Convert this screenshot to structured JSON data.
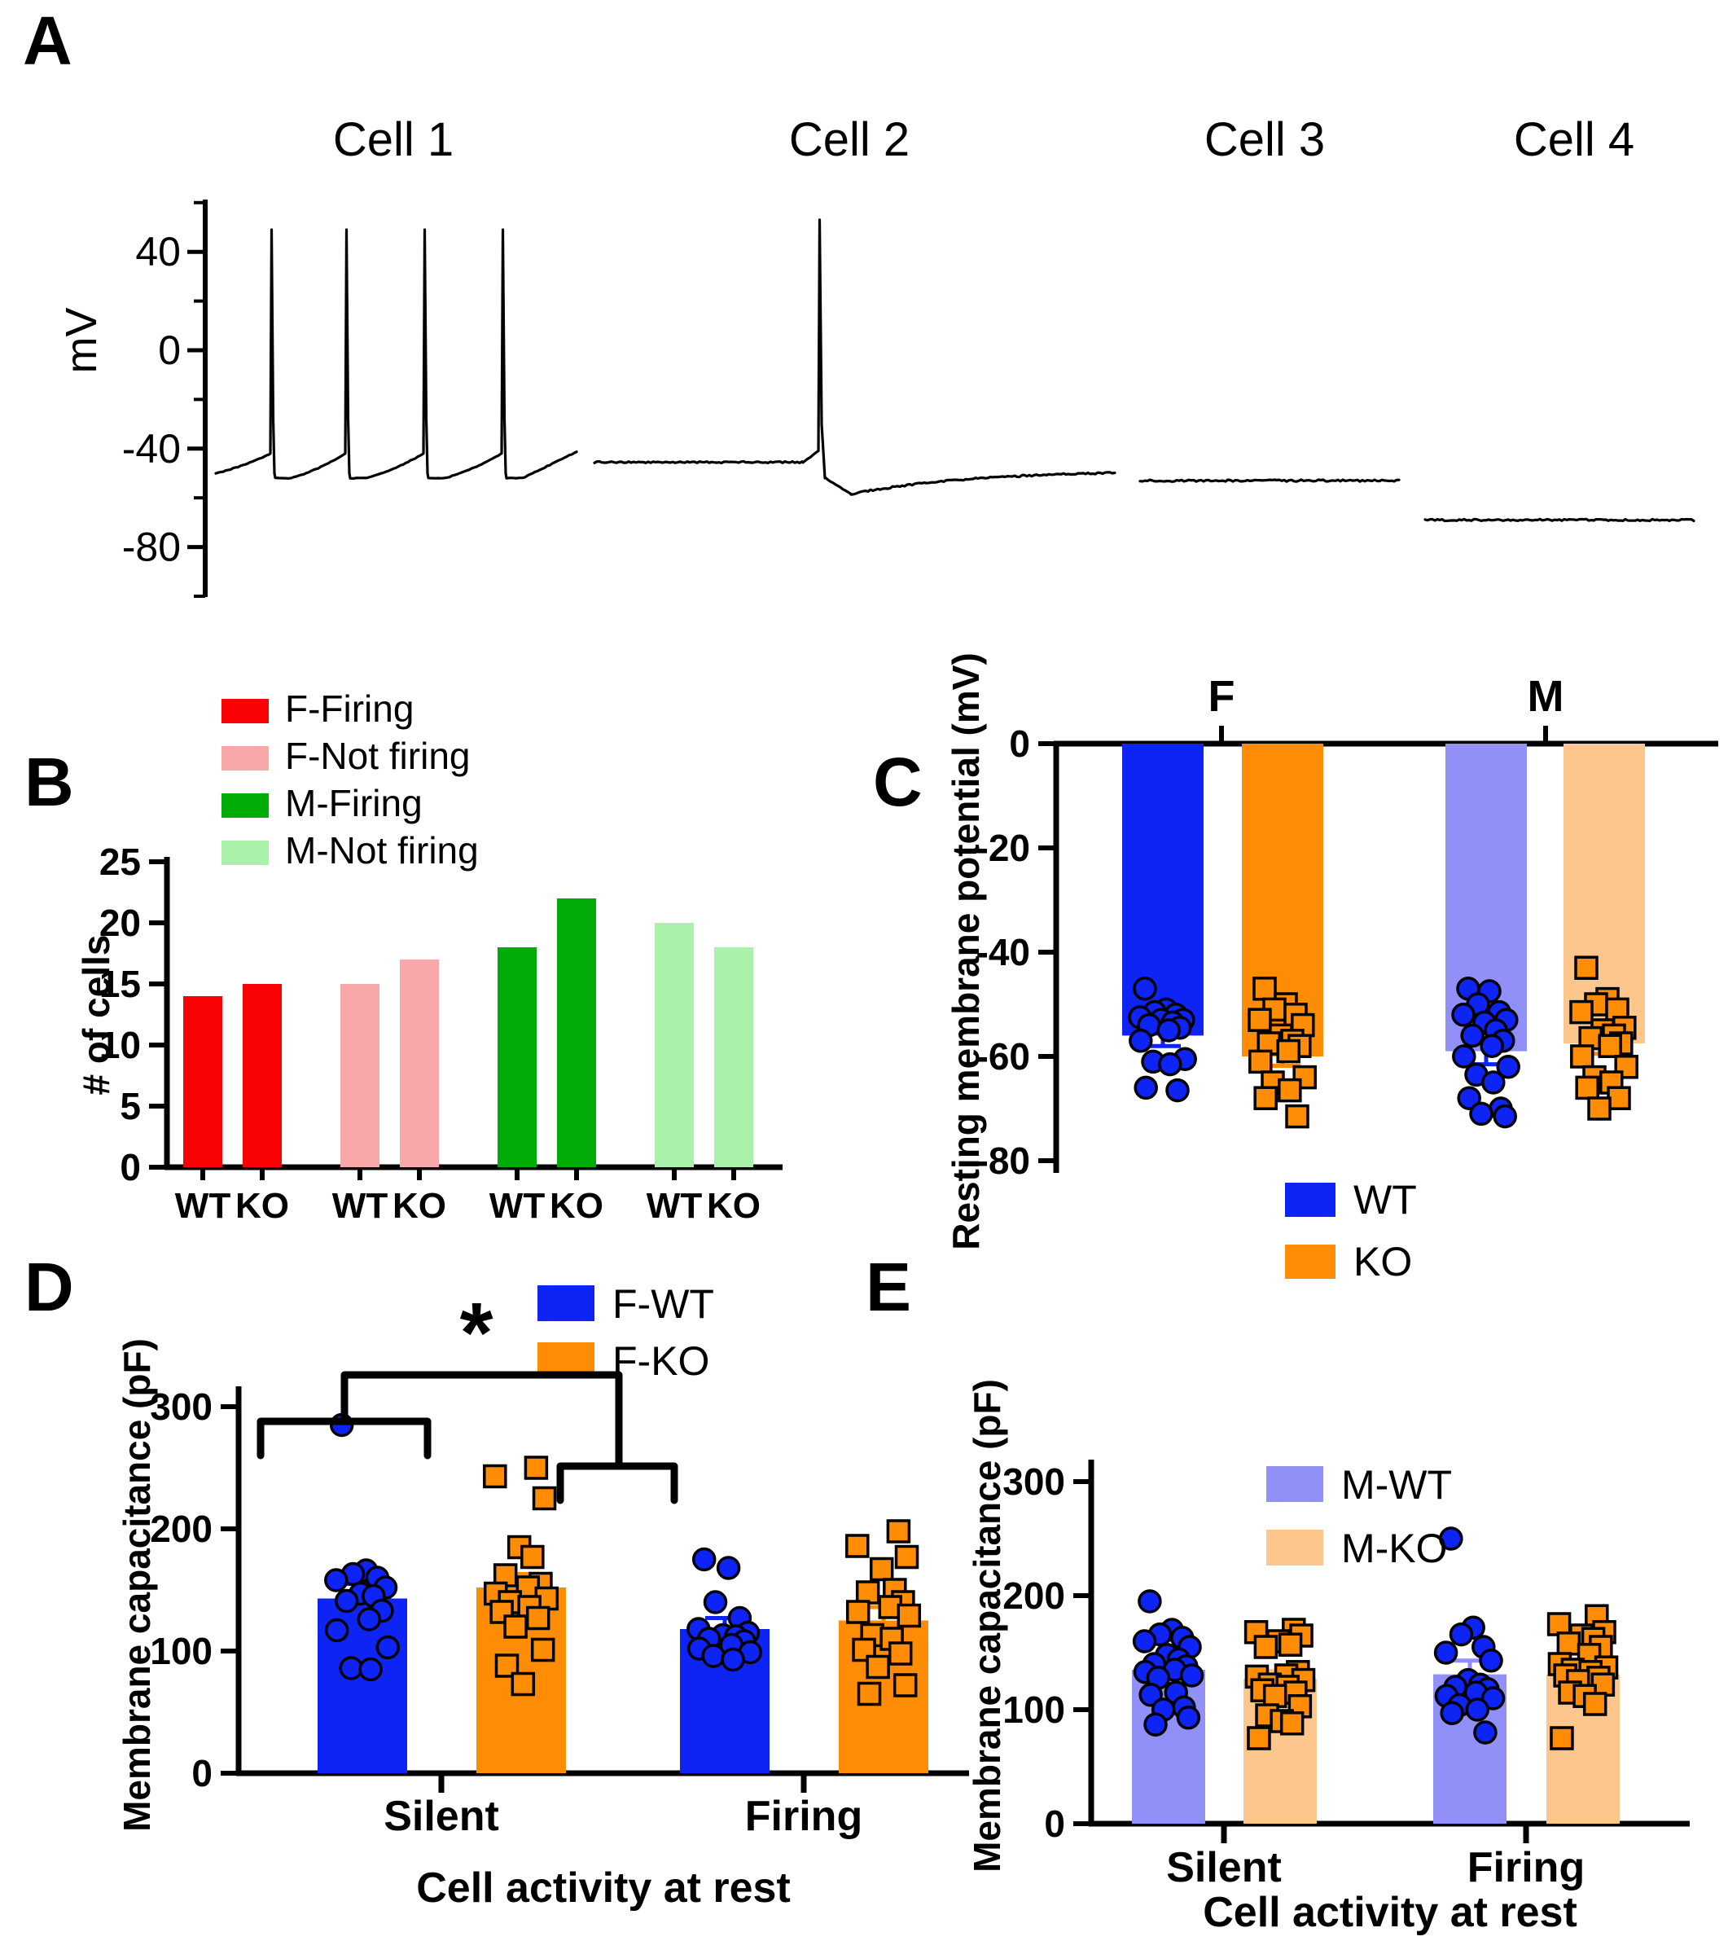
{
  "colors": {
    "wt_blue": "#0d24f5",
    "ko_orange": "#ff8c05",
    "m_wt_periwinkle": "#9090f8",
    "m_ko_peach": "#fcc68d",
    "f_firing_red": "#fb0207",
    "f_not_firing_pink": "#f8a8a8",
    "m_firing_green": "#00ad07",
    "m_not_firing_lightgreen": "#aaf2aa",
    "trace_black": "#000000"
  },
  "chart_data": [
    {
      "panel_letter": "A",
      "type": "line",
      "ylabel": "mV",
      "yticks": [
        40,
        0,
        -40,
        -80
      ],
      "ylim": [
        -100,
        60
      ],
      "traces": [
        {
          "name": "Cell 1",
          "activity": "firing",
          "baseline_mV": -50,
          "ramp_peak_mV": -42,
          "spike_peak_mV": 49,
          "ahp_mV": -52,
          "n_spikes": 4
        },
        {
          "name": "Cell 2",
          "activity": "single spike",
          "baseline_mV": -45.5,
          "spike_peak_mV": 53,
          "ahp_mV": -58.5,
          "recovery_end_mV": -49,
          "n_spikes": 1
        },
        {
          "name": "Cell 3",
          "activity": "silent",
          "baseline_mV": -53,
          "n_spikes": 0
        },
        {
          "name": "Cell 4",
          "activity": "silent",
          "baseline_mV": -69,
          "n_spikes": 0
        }
      ]
    },
    {
      "panel_letter": "B",
      "type": "bar",
      "ylabel": "# of cells",
      "ylim": [
        0,
        25
      ],
      "yticks": [
        0,
        5,
        10,
        15,
        20,
        25
      ],
      "categories": [
        "WT",
        "KO"
      ],
      "series": [
        {
          "name": "F-Firing",
          "color": "#fb0207",
          "values": [
            14,
            15
          ]
        },
        {
          "name": "F-Not firing",
          "color": "#f8a8a8",
          "values": [
            15,
            17
          ]
        },
        {
          "name": "M-Firing",
          "color": "#00ad07",
          "values": [
            18,
            22
          ]
        },
        {
          "name": "M-Not firing",
          "color": "#aaf2aa",
          "values": [
            20,
            18
          ]
        }
      ],
      "legend_position": "top-left"
    },
    {
      "panel_letter": "C",
      "type": "bar-scatter",
      "ylabel": "Resting membrane potential (mV)",
      "ylim": [
        -80,
        0
      ],
      "yticks": [
        0,
        -20,
        -40,
        -60,
        -80
      ],
      "top_group_labels": [
        "F",
        "M"
      ],
      "series": [
        {
          "name": "F-WT",
          "group": "F",
          "genotype": "WT",
          "bar_color": "#0d24f5",
          "marker": "circle",
          "marker_color": "#0d24f5",
          "mean": -56,
          "sem": 2,
          "points": [
            -47,
            -51,
            -51.5,
            -52,
            -52.5,
            -53,
            -53,
            -53.5,
            -54,
            -54.5,
            -55,
            -57,
            -60.5,
            -61,
            -61.5,
            -66,
            -66.5
          ]
        },
        {
          "name": "F-KO",
          "group": "F",
          "genotype": "KO",
          "bar_color": "#ff8c05",
          "marker": "square",
          "marker_color": "#ff8c05",
          "mean": -60,
          "sem": 1.8,
          "points": [
            -47,
            -50,
            -51,
            -52,
            -53,
            -54,
            -56,
            -57,
            -57.5,
            -58,
            -59,
            -61,
            -64,
            -65,
            -66.5,
            -68,
            -71.5
          ]
        },
        {
          "name": "M-WT",
          "group": "M",
          "genotype": "WT",
          "bar_color": "#9090f8",
          "marker": "circle",
          "marker_color": "#0d24f5",
          "mean": -59,
          "sem": 2.5,
          "points": [
            -47,
            -47.5,
            -50,
            -51.5,
            -52,
            -53,
            -53.5,
            -55,
            -56,
            -57,
            -58,
            -60,
            -62,
            -63.5,
            -65,
            -68,
            -70,
            -71,
            -71.5
          ]
        },
        {
          "name": "M-KO",
          "group": "M",
          "genotype": "KO",
          "bar_color": "#fcc68d",
          "marker": "square",
          "marker_color": "#ff8c05",
          "mean": -57.5,
          "sem": 2,
          "points": [
            -43,
            -49,
            -50,
            -51,
            -51.5,
            -54.5,
            -55,
            -56,
            -56.5,
            -57.5,
            -58,
            -60,
            -62,
            -64,
            -65,
            -66,
            -68,
            -70
          ]
        }
      ],
      "legend": [
        {
          "label": "WT",
          "color": "#0d24f5"
        },
        {
          "label": "KO",
          "color": "#ff8c05"
        }
      ]
    },
    {
      "panel_letter": "D",
      "type": "bar-scatter",
      "ylabel": "Membrane capacitance (pF)",
      "xlabel": "Cell activity at rest",
      "ylim": [
        0,
        300
      ],
      "yticks": [
        0,
        100,
        200,
        300
      ],
      "categories": [
        "Silent",
        "Firing"
      ],
      "series": [
        {
          "name": "F-WT",
          "color": "#0d24f5",
          "marker": "circle",
          "marker_color": "#0d24f5",
          "values": [
            {
              "category": "Silent",
              "mean": 143,
              "sem": 12,
              "points": [
                285,
                166,
                163,
                160,
                158,
                152,
                147,
                145,
                141,
                133,
                126,
                117,
                103,
                86,
                85
              ]
            },
            {
              "category": "Firing",
              "mean": 118,
              "sem": 9,
              "points": [
                175,
                168,
                140,
                127,
                118,
                115,
                113,
                112,
                110,
                108,
                105,
                102,
                99,
                96,
                93
              ]
            }
          ]
        },
        {
          "name": "F-KO",
          "color": "#ff8c05",
          "marker": "square",
          "marker_color": "#ff8c05",
          "values": [
            {
              "category": "Silent",
              "mean": 152,
              "sem": 11,
              "points": [
                250,
                243,
                225,
                185,
                177,
                162,
                155,
                152,
                147,
                143,
                140,
                136,
                132,
                127,
                120,
                101,
                88,
                73
              ]
            },
            {
              "category": "Firing",
              "mean": 125,
              "sem": 11,
              "points": [
                198,
                186,
                177,
                167,
                150,
                148,
                140,
                136,
                132,
                129,
                113,
                110,
                101,
                98,
                87,
                72,
                65
              ]
            }
          ]
        }
      ],
      "significance": {
        "symbol": "*",
        "comparison": "Silent vs Firing"
      }
    },
    {
      "panel_letter": "E",
      "type": "bar-scatter",
      "ylabel": "Membrane capacitance (pF)",
      "xlabel": "Cell activity at rest",
      "ylim": [
        0,
        300
      ],
      "yticks": [
        0,
        100,
        200,
        300
      ],
      "categories": [
        "Silent",
        "Firing"
      ],
      "series": [
        {
          "name": "M-WT",
          "color": "#9090f8",
          "marker": "circle",
          "marker_color": "#0d24f5",
          "values": [
            {
              "category": "Silent",
              "mean": 135,
              "sem": 8,
              "points": [
                195,
                170,
                166,
                163,
                160,
                155,
                148,
                144,
                140,
                138,
                135,
                133,
                130,
                128,
                115,
                113,
                102,
                100,
                93,
                87
              ]
            },
            {
              "category": "Firing",
              "mean": 131,
              "sem": 12,
              "points": [
                250,
                172,
                166,
                155,
                150,
                143,
                126,
                122,
                120,
                118,
                115,
                112,
                110,
                104,
                100,
                97,
                80
              ]
            }
          ]
        },
        {
          "name": "M-KO",
          "color": "#fcc68d",
          "marker": "square",
          "marker_color": "#ff8c05",
          "values": [
            {
              "category": "Silent",
              "mean": 127,
              "sem": 7,
              "points": [
                170,
                168,
                165,
                160,
                157,
                155,
                133,
                130,
                129,
                126,
                122,
                120,
                117,
                115,
                112,
                103,
                95,
                90,
                88,
                75
              ]
            },
            {
              "category": "Firing",
              "mean": 131,
              "sem": 6,
              "points": [
                182,
                175,
                168,
                165,
                162,
                158,
                155,
                148,
                140,
                137,
                135,
                133,
                130,
                128,
                125,
                122,
                115,
                112,
                105,
                75
              ]
            }
          ]
        }
      ]
    }
  ]
}
